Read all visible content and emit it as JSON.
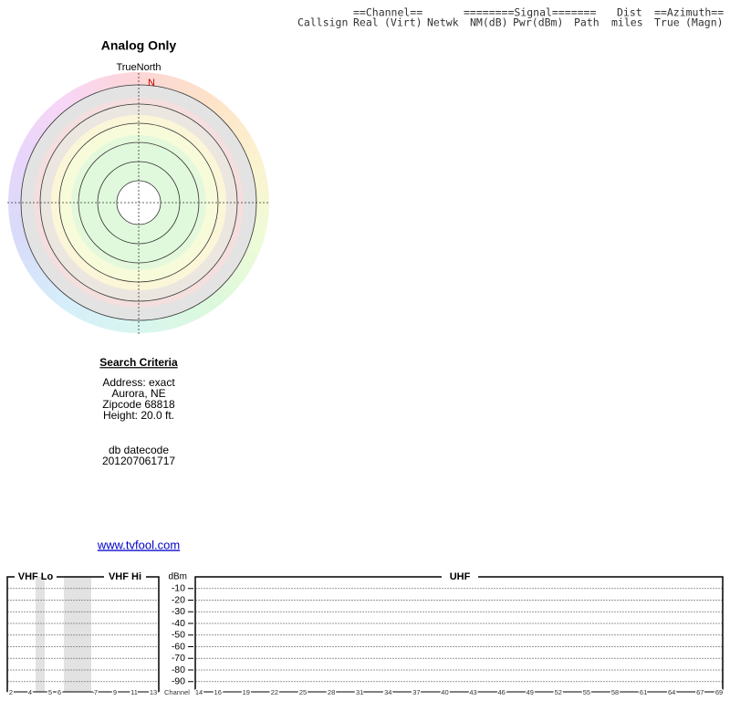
{
  "header": {
    "row1": [
      "==Channel==",
      "========Signal=======",
      "Dist",
      "==Azimuth=="
    ],
    "row2": [
      "Callsign",
      "Real",
      "(Virt)",
      "Netwk",
      "NM(dB)",
      "Pwr(dBm)",
      "Path",
      "miles",
      "True",
      "(Magn)"
    ]
  },
  "map": {
    "title": "Analog Only",
    "north_label": "TrueNorth",
    "north_marker": "N"
  },
  "search_criteria": {
    "heading": "Search Criteria",
    "lines": [
      "Address: exact",
      "Aurora, NE",
      "Zipcode 68818",
      "Height: 20.0 ft."
    ],
    "datecode_label": "db datecode",
    "datecode": "201207061717"
  },
  "link": "www.tvfool.com",
  "spectrum": {
    "vhf_lo_label": "VHF Lo",
    "vhf_hi_label": "VHF Hi",
    "uhf_label": "UHF",
    "unit": "dBm",
    "channel_label": "Channel",
    "dbm_ticks": [
      -10,
      -20,
      -30,
      -40,
      -50,
      -60,
      -70,
      -80,
      -90
    ],
    "vhf_lo_channels": [
      2,
      4,
      5,
      6
    ],
    "vhf_hi_channels": [
      7,
      9,
      11,
      13
    ],
    "uhf_channels": [
      14,
      16,
      19,
      22,
      25,
      28,
      31,
      34,
      37,
      40,
      43,
      46,
      49,
      52,
      55,
      58,
      61,
      64,
      67,
      69
    ]
  }
}
